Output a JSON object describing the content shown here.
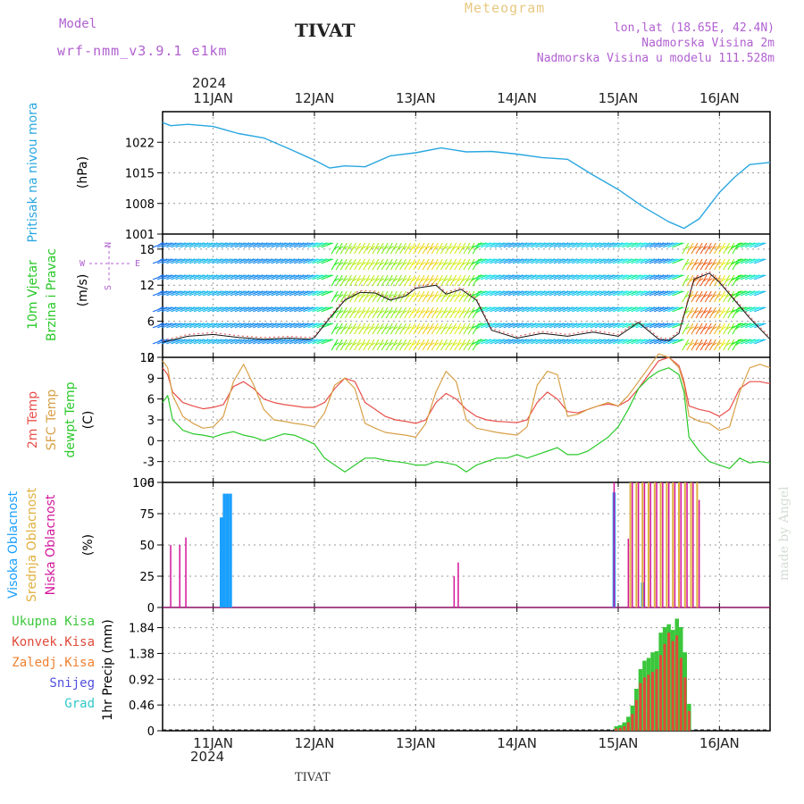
{
  "header": {
    "model_label": "Model",
    "model_name": "wrf-nmm_v3.9.1 e1km",
    "station": "TIVAT",
    "meteogram_label": "Meteogram",
    "lonlat": "lon,lat (18.65E, 42.4N)",
    "elevation": "Nadmorska Visina 2m",
    "model_elevation": "Nadmorska Visina u modelu 111.528m",
    "year_top": "2024",
    "year_bottom": "2024",
    "footer_station": "TIVAT",
    "watermark": "made by Angel"
  },
  "colors": {
    "pressure": "#2aa7e0",
    "temp2m": "#e8504a",
    "sfctemp": "#d8a048",
    "dewpt": "#2bc92b",
    "high_cloud": "#1aa0ff",
    "mid_cloud": "#e0b040",
    "low_cloud": "#d2169a",
    "total_precip": "#3bc63b",
    "conv_precip": "#e04a3a",
    "frozen_precip": "#f08030",
    "snow": "#5050e0",
    "hail": "#30c8c8",
    "wind_axis_label": "#28c828",
    "purple": "#b060d0"
  },
  "chart_data": [
    {
      "type": "line",
      "panel": "pressure",
      "title": "Pritisak na nivou mora",
      "ylabel": "(hPa)",
      "ylim": [
        1001,
        1029
      ],
      "yticks": [
        "1001",
        "1008",
        "1015",
        "1022"
      ],
      "xlim": [
        -0.5,
        5.5
      ],
      "xticks": [
        "11JAN",
        "12JAN",
        "13JAN",
        "14JAN",
        "15JAN",
        "16JAN"
      ],
      "grid": true,
      "x": [
        -0.5,
        -0.42,
        -0.25,
        0,
        0.25,
        0.5,
        0.75,
        1.0,
        1.15,
        1.3,
        1.5,
        1.75,
        2.0,
        2.25,
        2.5,
        2.75,
        3.0,
        3.25,
        3.5,
        3.75,
        4.0,
        4.25,
        4.5,
        4.65,
        4.8,
        4.9,
        5.0,
        5.15,
        5.3,
        5.5
      ],
      "series": [
        {
          "values": [
            1026.5,
            1025.8,
            1026.1,
            1025.6,
            1024.0,
            1023.0,
            1020.5,
            1017.9,
            1016.1,
            1016.6,
            1016.4,
            1018.9,
            1019.6,
            1020.7,
            1019.8,
            1019.9,
            1019.3,
            1018.5,
            1018.1,
            1014.5,
            1011.2,
            1007.2,
            1003.8,
            1002.3,
            1004.5,
            1007.5,
            1010.5,
            1014.0,
            1016.9,
            1017.4
          ]
        }
      ]
    },
    {
      "type": "line",
      "panel": "wind",
      "title": "10m Vjetar Brzina i Pravac",
      "ylabel": "(m/s)",
      "compass": {
        "n": "N",
        "s": "S",
        "w": "W",
        "e": "E"
      },
      "ylim": [
        0,
        20.5
      ],
      "yticks": [
        "0",
        "6",
        "12",
        "18"
      ],
      "x": [
        -0.5,
        -0.25,
        0,
        0.25,
        0.5,
        0.75,
        0.95,
        1.0,
        1.15,
        1.3,
        1.45,
        1.6,
        1.75,
        1.9,
        2.0,
        2.2,
        2.3,
        2.45,
        2.6,
        2.75,
        3.0,
        3.25,
        3.5,
        3.75,
        4.0,
        4.2,
        4.4,
        4.5,
        4.6,
        4.75,
        4.9,
        5.0,
        5.15,
        5.3,
        5.5
      ],
      "series": [
        {
          "name": "speed",
          "values": [
            2.5,
            3.5,
            3.8,
            3.3,
            3.0,
            3.2,
            3.0,
            3.3,
            6.5,
            9.5,
            10.8,
            10.7,
            9.5,
            10.2,
            11.5,
            12.0,
            10.5,
            11.3,
            9.5,
            4.5,
            3.2,
            4.0,
            3.5,
            4.2,
            3.5,
            5.8,
            3.0,
            2.8,
            4.0,
            13.0,
            14.0,
            12.5,
            9.5,
            6.5,
            3.0
          ]
        }
      ]
    },
    {
      "type": "line",
      "panel": "temperature",
      "title": "2m Temp SFC Temp dewpt Temp",
      "legend": [
        "2m Temp",
        "SFC Temp",
        "dewpt Temp"
      ],
      "ylabel": "(C)",
      "ylim": [
        -6,
        12
      ],
      "yticks": [
        "-6",
        "-3",
        "0",
        "3",
        "6",
        "9",
        "12"
      ],
      "x": [
        -0.5,
        -0.45,
        -0.4,
        -0.3,
        -0.2,
        -0.1,
        0,
        0.1,
        0.2,
        0.3,
        0.4,
        0.5,
        0.6,
        0.7,
        0.8,
        0.9,
        1.0,
        1.1,
        1.2,
        1.3,
        1.4,
        1.5,
        1.6,
        1.7,
        1.8,
        1.9,
        2.0,
        2.1,
        2.2,
        2.3,
        2.4,
        2.5,
        2.6,
        2.7,
        2.8,
        2.9,
        3.0,
        3.1,
        3.2,
        3.3,
        3.4,
        3.5,
        3.6,
        3.7,
        3.8,
        3.9,
        4.0,
        4.1,
        4.2,
        4.3,
        4.4,
        4.5,
        4.6,
        4.65,
        4.7,
        4.8,
        4.9,
        5.0,
        5.1,
        5.2,
        5.3,
        5.4,
        5.5
      ],
      "series": [
        {
          "name": "2m Temp",
          "values": [
            10.5,
            9.5,
            7.0,
            5.5,
            5.0,
            4.6,
            4.8,
            5.2,
            7.8,
            8.5,
            7.5,
            6.0,
            5.5,
            5.2,
            5.0,
            4.8,
            4.8,
            5.5,
            7.5,
            9.0,
            8.5,
            5.5,
            4.5,
            3.5,
            3.0,
            2.8,
            2.5,
            3.0,
            5.5,
            6.8,
            6.0,
            4.5,
            3.5,
            3.0,
            2.8,
            2.7,
            2.6,
            3.0,
            5.5,
            7.0,
            6.0,
            4.2,
            4.0,
            4.5,
            5.0,
            5.3,
            5.0,
            5.8,
            7.5,
            9.5,
            11.5,
            12.0,
            10.8,
            8.5,
            5.0,
            4.5,
            4.2,
            3.5,
            4.5,
            7.5,
            8.5,
            8.5,
            8.2
          ]
        },
        {
          "name": "SFC Temp",
          "values": [
            11.5,
            10.5,
            6.5,
            3.5,
            2.5,
            1.8,
            2.0,
            3.5,
            8.5,
            11.0,
            8.0,
            4.5,
            3.0,
            2.8,
            2.5,
            2.3,
            2.0,
            4.0,
            8.0,
            9.0,
            7.5,
            2.5,
            1.8,
            1.2,
            1.0,
            0.8,
            0.5,
            2.5,
            7.0,
            10.0,
            8.5,
            3.0,
            1.8,
            1.5,
            1.2,
            1.0,
            0.8,
            2.0,
            8.0,
            10.0,
            9.5,
            3.5,
            3.8,
            4.5,
            5.0,
            5.5,
            5.0,
            6.5,
            8.5,
            10.5,
            12.5,
            12.0,
            10.5,
            8.0,
            3.5,
            2.8,
            2.5,
            1.5,
            2.0,
            7.0,
            10.5,
            11.0,
            10.5
          ]
        },
        {
          "name": "dewpt Temp",
          "values": [
            5.5,
            6.5,
            3.0,
            1.5,
            1.0,
            0.8,
            0.5,
            1.0,
            1.3,
            0.8,
            0.5,
            0.0,
            0.5,
            1.0,
            0.8,
            0.2,
            -0.5,
            -2.5,
            -3.5,
            -4.5,
            -3.5,
            -2.5,
            -2.5,
            -2.8,
            -3.0,
            -3.2,
            -3.5,
            -3.5,
            -3.0,
            -3.2,
            -3.5,
            -4.5,
            -3.5,
            -3.0,
            -2.5,
            -2.5,
            -2.0,
            -2.5,
            -2.0,
            -1.5,
            -1.0,
            -2.0,
            -2.0,
            -1.5,
            -0.5,
            0.5,
            2.0,
            4.5,
            7.5,
            9.0,
            10.0,
            10.5,
            9.5,
            7.0,
            0.5,
            -1.5,
            -3.0,
            -3.5,
            -4.0,
            -2.5,
            -3.2,
            -3.0,
            -3.2
          ]
        }
      ]
    },
    {
      "type": "bar",
      "panel": "cloud",
      "title": "Visoka Oblacnost Srednja Oblacnost Niska Oblacnost",
      "legend": [
        "Visoka Oblacnost",
        "Srednja Oblacnost",
        "Niska Oblacnost"
      ],
      "ylabel": "(%)",
      "ylim": [
        0,
        100
      ],
      "yticks": [
        "0",
        "25",
        "50",
        "75",
        "100"
      ],
      "series": [
        {
          "name": "Visoka Oblacnost",
          "x": [
            0.08,
            0.11,
            0.14,
            0.17,
            3.96,
            4.24
          ],
          "values": [
            72,
            91,
            91,
            91,
            92,
            20
          ]
        },
        {
          "name": "Srednja Oblacnost",
          "x": [
            4.12,
            4.18,
            4.24,
            4.3,
            4.36,
            4.42,
            4.48,
            4.54,
            4.6,
            4.66,
            4.72,
            4.78
          ],
          "values": [
            100,
            100,
            100,
            100,
            100,
            100,
            100,
            100,
            100,
            100,
            100,
            100
          ]
        },
        {
          "name": "Niska Oblacnost",
          "x": [
            -0.42,
            -0.33,
            -0.27,
            2.38,
            2.42,
            3.96,
            4.1,
            4.14,
            4.2,
            4.26,
            4.32,
            4.38,
            4.44,
            4.5,
            4.56,
            4.62,
            4.68,
            4.74,
            4.8
          ],
          "values": [
            50,
            50,
            56,
            25,
            36,
            100,
            55,
            100,
            100,
            100,
            100,
            100,
            100,
            100,
            100,
            100,
            100,
            100,
            86
          ]
        }
      ]
    },
    {
      "type": "bar",
      "panel": "precip",
      "title": "1hr Precip",
      "legend": [
        "Ukupna Kisa",
        "Konvek.Kisa",
        "Zaledj.Kisa",
        "Snijeg",
        "Grad"
      ],
      "ylabel": "1hr Precip (mm)",
      "ylim": [
        0,
        2.2
      ],
      "yticks": [
        "0",
        "0.46",
        "0.92",
        "1.38",
        "1.84"
      ],
      "x": [
        3.98,
        4.02,
        4.06,
        4.1,
        4.14,
        4.18,
        4.22,
        4.26,
        4.3,
        4.34,
        4.38,
        4.42,
        4.46,
        4.5,
        4.54,
        4.58,
        4.62,
        4.66,
        4.7,
        4.74
      ],
      "series": [
        {
          "name": "Ukupna Kisa",
          "values": [
            0.08,
            0.1,
            0.15,
            0.25,
            0.45,
            0.75,
            1.1,
            1.25,
            1.3,
            1.4,
            1.42,
            1.75,
            1.85,
            1.9,
            1.8,
            2.0,
            1.85,
            1.4,
            0.48,
            0.0
          ]
        },
        {
          "name": "Konvek.Kisa",
          "values": [
            0.04,
            0.05,
            0.08,
            0.15,
            0.3,
            0.55,
            0.85,
            0.95,
            1.0,
            1.05,
            1.1,
            1.35,
            1.55,
            1.75,
            1.6,
            1.7,
            1.3,
            0.95,
            0.35,
            0.0
          ]
        }
      ]
    }
  ]
}
